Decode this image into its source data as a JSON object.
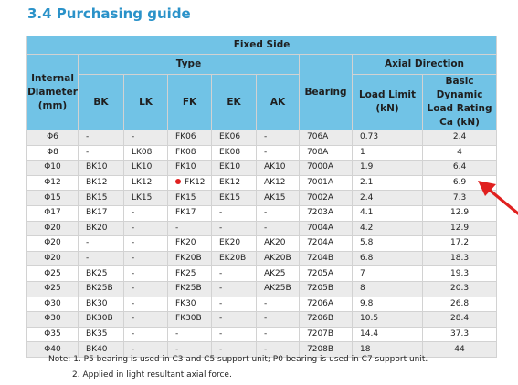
{
  "section_title": "3.4  Purchasing guide",
  "header": {
    "fixed_side": "Fixed Side",
    "internal_diameter": "Internal Diameter (mm)",
    "type": "Type",
    "bearing": "Bearing",
    "axial_direction": "Axial  Direction",
    "type_columns": [
      "BK",
      "LK",
      "FK",
      "EK",
      "AK"
    ],
    "load_limit": "Load Limit (kN)",
    "basic_rating": "Basic Dynamic Load Rating Ca (kN)"
  },
  "rows": [
    {
      "d": "Φ6",
      "bk": "-",
      "lk": "-",
      "fk": "FK06",
      "ek": "EK06",
      "ak": "-",
      "bearing": "706A",
      "load": "0.73",
      "rating": "2.4"
    },
    {
      "d": "Φ8",
      "bk": "-",
      "lk": "LK08",
      "fk": "FK08",
      "ek": "EK08",
      "ak": "-",
      "bearing": "708A",
      "load": "1",
      "rating": "4"
    },
    {
      "d": "Φ10",
      "bk": "BK10",
      "lk": "LK10",
      "fk": "FK10",
      "ek": "EK10",
      "ak": "AK10",
      "bearing": "7000A",
      "load": "1.9",
      "rating": "6.4"
    },
    {
      "d": "Φ12",
      "bk": "BK12",
      "lk": "LK12",
      "fk": "FK12",
      "ek": "EK12",
      "ak": "AK12",
      "bearing": "7001A",
      "load": "2.1",
      "rating": "6.9",
      "marked": true
    },
    {
      "d": "Φ15",
      "bk": "BK15",
      "lk": "LK15",
      "fk": "FK15",
      "ek": "EK15",
      "ak": "AK15",
      "bearing": "7002A",
      "load": "2.4",
      "rating": "7.3"
    },
    {
      "d": "Φ17",
      "bk": "BK17",
      "lk": "-",
      "fk": "FK17",
      "ek": "-",
      "ak": "-",
      "bearing": "7203A",
      "load": "4.1",
      "rating": "12.9"
    },
    {
      "d": "Φ20",
      "bk": "BK20",
      "lk": "-",
      "fk": "-",
      "ek": "-",
      "ak": "-",
      "bearing": "7004A",
      "load": "4.2",
      "rating": "12.9"
    },
    {
      "d": "Φ20",
      "bk": "-",
      "lk": "-",
      "fk": "FK20",
      "ek": "EK20",
      "ak": "AK20",
      "bearing": "7204A",
      "load": "5.8",
      "rating": "17.2"
    },
    {
      "d": "Φ20",
      "bk": "-",
      "lk": "-",
      "fk": "FK20B",
      "ek": "EK20B",
      "ak": "AK20B",
      "bearing": "7204B",
      "load": "6.8",
      "rating": "18.3"
    },
    {
      "d": "Φ25",
      "bk": "BK25",
      "lk": "-",
      "fk": "FK25",
      "ek": "-",
      "ak": "AK25",
      "bearing": "7205A",
      "load": "7",
      "rating": "19.3"
    },
    {
      "d": "Φ25",
      "bk": "BK25B",
      "lk": "-",
      "fk": "FK25B",
      "ek": "-",
      "ak": "AK25B",
      "bearing": "7205B",
      "load": "8",
      "rating": "20.3"
    },
    {
      "d": "Φ30",
      "bk": "BK30",
      "lk": "-",
      "fk": "FK30",
      "ek": "-",
      "ak": "-",
      "bearing": "7206A",
      "load": "9.8",
      "rating": "26.8"
    },
    {
      "d": "Φ30",
      "bk": "BK30B",
      "lk": "-",
      "fk": "FK30B",
      "ek": "-",
      "ak": "-",
      "bearing": "7206B",
      "load": "10.5",
      "rating": "28.4"
    },
    {
      "d": "Φ35",
      "bk": "BK35",
      "lk": "-",
      "fk": "-",
      "ek": "-",
      "ak": "-",
      "bearing": "7207B",
      "load": "14.4",
      "rating": "37.3"
    },
    {
      "d": "Φ40",
      "bk": "BK40",
      "lk": "-",
      "fk": "-",
      "ek": "-",
      "ak": "-",
      "bearing": "7208B",
      "load": "18",
      "rating": "44"
    }
  ],
  "notes": {
    "line1": "Note: 1. P5 bearing is used in C3 and C5 support unit; P0 bearing is used in C7 support unit.",
    "line2": "2. Applied in light resultant axial force."
  },
  "colors": {
    "title": "#2a92c9",
    "header_bg": "#71c3e6",
    "odd_row": "#ebebeb",
    "marker": "#e0201f",
    "arrow": "#e0201f"
  },
  "icons": {
    "row_marker": "red-dot-marker",
    "pointer": "red-arrow-pointer"
  }
}
